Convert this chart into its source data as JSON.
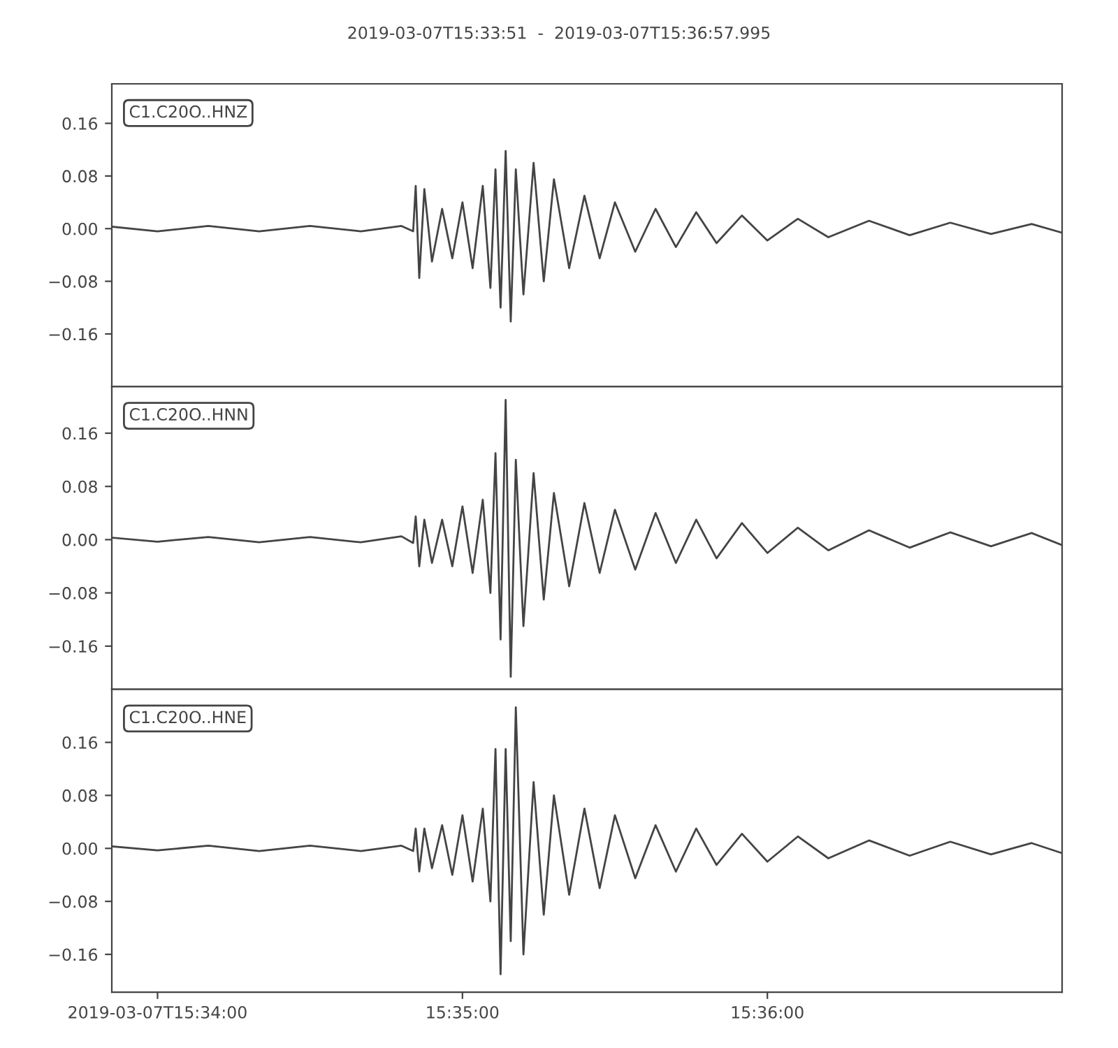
{
  "chart_data": [
    {
      "type": "line",
      "title": "2019-03-07T15:33:51  -  2019-03-07T15:36:57.995",
      "x": [
        "2019-03-07T15:33:51",
        "2019-03-07T15:34:00",
        "2019-03-07T15:34:10",
        "2019-03-07T15:34:20",
        "2019-03-07T15:34:30",
        "2019-03-07T15:34:40",
        "2019-03-07T15:34:48",
        "2019-03-07T15:34:50.3",
        "2019-03-07T15:34:50.8",
        "2019-03-07T15:34:51.5",
        "2019-03-07T15:34:52.5",
        "2019-03-07T15:34:54",
        "2019-03-07T15:34:56",
        "2019-03-07T15:34:58",
        "2019-03-07T15:35:00",
        "2019-03-07T15:35:02",
        "2019-03-07T15:35:04",
        "2019-03-07T15:35:05.5",
        "2019-03-07T15:35:06.5",
        "2019-03-07T15:35:07.5",
        "2019-03-07T15:35:08.5",
        "2019-03-07T15:35:09.5",
        "2019-03-07T15:35:10.5",
        "2019-03-07T15:35:12",
        "2019-03-07T15:35:14",
        "2019-03-07T15:35:16",
        "2019-03-07T15:35:18",
        "2019-03-07T15:35:21",
        "2019-03-07T15:35:24",
        "2019-03-07T15:35:27",
        "2019-03-07T15:35:30",
        "2019-03-07T15:35:34",
        "2019-03-07T15:35:38",
        "2019-03-07T15:35:42",
        "2019-03-07T15:35:46",
        "2019-03-07T15:35:50",
        "2019-03-07T15:35:55",
        "2019-03-07T15:36:00",
        "2019-03-07T15:36:06",
        "2019-03-07T15:36:12",
        "2019-03-07T15:36:20",
        "2019-03-07T15:36:28",
        "2019-03-07T15:36:36",
        "2019-03-07T15:36:44",
        "2019-03-07T15:36:52",
        "2019-03-07T15:36:57.9"
      ],
      "series": [
        {
          "name": "C1.C20O..HNZ",
          "color": "#444444",
          "values": [
            0.003,
            -0.004,
            0.004,
            -0.004,
            0.004,
            -0.004,
            0.004,
            -0.004,
            0.065,
            -0.075,
            0.06,
            -0.05,
            0.03,
            -0.045,
            0.04,
            -0.06,
            0.065,
            -0.09,
            0.09,
            -0.12,
            0.118,
            -0.141,
            0.09,
            -0.1,
            0.1,
            -0.08,
            0.075,
            -0.06,
            0.05,
            -0.045,
            0.04,
            -0.035,
            0.03,
            -0.028,
            0.025,
            -0.022,
            0.02,
            -0.018,
            0.015,
            -0.013,
            0.012,
            -0.01,
            0.009,
            -0.008,
            0.007,
            -0.006
          ]
        }
      ],
      "xlim": [
        "2019-03-07T15:33:51",
        "2019-03-07T15:36:57.995"
      ],
      "xticks": [
        {
          "value": "2019-03-07T15:34:00",
          "label": null
        },
        {
          "value": "2019-03-07T15:35:00",
          "label": null
        },
        {
          "value": "2019-03-07T15:36:00",
          "label": null
        }
      ],
      "ylim": [
        -0.24,
        0.22
      ],
      "yticks": [
        {
          "value": -0.16,
          "label": "−0.16"
        },
        {
          "value": -0.08,
          "label": "−0.08"
        },
        {
          "value": 0,
          "label": "0.00"
        },
        {
          "value": 0.08,
          "label": "0.08"
        },
        {
          "value": 0.16,
          "label": "0.16"
        }
      ],
      "tick_labels": "y",
      "grid": false,
      "marker": "none",
      "line_style": "solid"
    },
    {
      "type": "line",
      "x": [
        "2019-03-07T15:33:51",
        "2019-03-07T15:34:00",
        "2019-03-07T15:34:10",
        "2019-03-07T15:34:20",
        "2019-03-07T15:34:30",
        "2019-03-07T15:34:40",
        "2019-03-07T15:34:48",
        "2019-03-07T15:34:50.3",
        "2019-03-07T15:34:50.8",
        "2019-03-07T15:34:51.5",
        "2019-03-07T15:34:52.5",
        "2019-03-07T15:34:54",
        "2019-03-07T15:34:56",
        "2019-03-07T15:34:58",
        "2019-03-07T15:35:00",
        "2019-03-07T15:35:02",
        "2019-03-07T15:35:04",
        "2019-03-07T15:35:05.5",
        "2019-03-07T15:35:06.5",
        "2019-03-07T15:35:07.5",
        "2019-03-07T15:35:08.5",
        "2019-03-07T15:35:09.5",
        "2019-03-07T15:35:10.5",
        "2019-03-07T15:35:12",
        "2019-03-07T15:35:14",
        "2019-03-07T15:35:16",
        "2019-03-07T15:35:18",
        "2019-03-07T15:35:21",
        "2019-03-07T15:35:24",
        "2019-03-07T15:35:27",
        "2019-03-07T15:35:30",
        "2019-03-07T15:35:34",
        "2019-03-07T15:35:38",
        "2019-03-07T15:35:42",
        "2019-03-07T15:35:46",
        "2019-03-07T15:35:50",
        "2019-03-07T15:35:55",
        "2019-03-07T15:36:00",
        "2019-03-07T15:36:06",
        "2019-03-07T15:36:12",
        "2019-03-07T15:36:20",
        "2019-03-07T15:36:28",
        "2019-03-07T15:36:36",
        "2019-03-07T15:36:44",
        "2019-03-07T15:36:52",
        "2019-03-07T15:36:57.9"
      ],
      "series": [
        {
          "name": "C1.C20O..HNN",
          "color": "#444444",
          "values": [
            0.003,
            -0.003,
            0.004,
            -0.004,
            0.004,
            -0.004,
            0.005,
            -0.005,
            0.035,
            -0.04,
            0.03,
            -0.035,
            0.03,
            -0.04,
            0.05,
            -0.05,
            0.06,
            -0.08,
            0.13,
            -0.15,
            0.21,
            -0.206,
            0.12,
            -0.13,
            0.1,
            -0.09,
            0.07,
            -0.07,
            0.055,
            -0.05,
            0.045,
            -0.045,
            0.04,
            -0.035,
            0.03,
            -0.028,
            0.025,
            -0.02,
            0.018,
            -0.016,
            0.014,
            -0.012,
            0.011,
            -0.01,
            0.01,
            -0.008
          ]
        }
      ],
      "xlim": [
        "2019-03-07T15:33:51",
        "2019-03-07T15:36:57.995"
      ],
      "xticks": [
        {
          "value": "2019-03-07T15:34:00",
          "label": null
        },
        {
          "value": "2019-03-07T15:35:00",
          "label": null
        },
        {
          "value": "2019-03-07T15:36:00",
          "label": null
        }
      ],
      "ylim": [
        -0.225,
        0.23
      ],
      "yticks": [
        {
          "value": -0.16,
          "label": "−0.16"
        },
        {
          "value": -0.08,
          "label": "−0.08"
        },
        {
          "value": 0,
          "label": "0.00"
        },
        {
          "value": 0.08,
          "label": "0.08"
        },
        {
          "value": 0.16,
          "label": "0.16"
        }
      ],
      "tick_labels": "y",
      "grid": false,
      "marker": "none",
      "line_style": "solid"
    },
    {
      "type": "line",
      "x": [
        "2019-03-07T15:33:51",
        "2019-03-07T15:34:00",
        "2019-03-07T15:34:10",
        "2019-03-07T15:34:20",
        "2019-03-07T15:34:30",
        "2019-03-07T15:34:40",
        "2019-03-07T15:34:48",
        "2019-03-07T15:34:50.3",
        "2019-03-07T15:34:50.8",
        "2019-03-07T15:34:51.5",
        "2019-03-07T15:34:52.5",
        "2019-03-07T15:34:54",
        "2019-03-07T15:34:56",
        "2019-03-07T15:34:58",
        "2019-03-07T15:35:00",
        "2019-03-07T15:35:02",
        "2019-03-07T15:35:04",
        "2019-03-07T15:35:05.5",
        "2019-03-07T15:35:06.5",
        "2019-03-07T15:35:07.5",
        "2019-03-07T15:35:08.5",
        "2019-03-07T15:35:09.5",
        "2019-03-07T15:35:10.5",
        "2019-03-07T15:35:12",
        "2019-03-07T15:35:14",
        "2019-03-07T15:35:16",
        "2019-03-07T15:35:18",
        "2019-03-07T15:35:21",
        "2019-03-07T15:35:24",
        "2019-03-07T15:35:27",
        "2019-03-07T15:35:30",
        "2019-03-07T15:35:34",
        "2019-03-07T15:35:38",
        "2019-03-07T15:35:42",
        "2019-03-07T15:35:46",
        "2019-03-07T15:35:50",
        "2019-03-07T15:35:55",
        "2019-03-07T15:36:00",
        "2019-03-07T15:36:06",
        "2019-03-07T15:36:12",
        "2019-03-07T15:36:20",
        "2019-03-07T15:36:28",
        "2019-03-07T15:36:36",
        "2019-03-07T15:36:44",
        "2019-03-07T15:36:52",
        "2019-03-07T15:36:57.9"
      ],
      "series": [
        {
          "name": "C1.C20O..HNE",
          "color": "#444444",
          "values": [
            0.003,
            -0.003,
            0.004,
            -0.004,
            0.004,
            -0.004,
            0.004,
            -0.004,
            0.03,
            -0.035,
            0.03,
            -0.03,
            0.035,
            -0.04,
            0.05,
            -0.05,
            0.06,
            -0.08,
            0.15,
            -0.19,
            0.15,
            -0.14,
            0.213,
            -0.16,
            0.1,
            -0.1,
            0.08,
            -0.07,
            0.06,
            -0.06,
            0.05,
            -0.045,
            0.035,
            -0.035,
            0.03,
            -0.025,
            0.022,
            -0.02,
            0.018,
            -0.015,
            0.012,
            -0.011,
            0.01,
            -0.009,
            0.008,
            -0.007
          ]
        }
      ],
      "xlim": [
        "2019-03-07T15:33:51",
        "2019-03-07T15:36:57.995"
      ],
      "xticks": [
        {
          "value": "2019-03-07T15:34:00",
          "label": "2019-03-07T15:34:00"
        },
        {
          "value": "2019-03-07T15:35:00",
          "label": "15:35:00"
        },
        {
          "value": "2019-03-07T15:36:00",
          "label": "15:36:00"
        }
      ],
      "ylim": [
        -0.217,
        0.24
      ],
      "yticks": [
        {
          "value": -0.16,
          "label": "−0.16"
        },
        {
          "value": -0.08,
          "label": "−0.08"
        },
        {
          "value": 0,
          "label": "0.00"
        },
        {
          "value": 0.08,
          "label": "0.08"
        },
        {
          "value": 0.16,
          "label": "0.16"
        }
      ],
      "grid": false,
      "marker": "none",
      "line_style": "solid"
    }
  ]
}
